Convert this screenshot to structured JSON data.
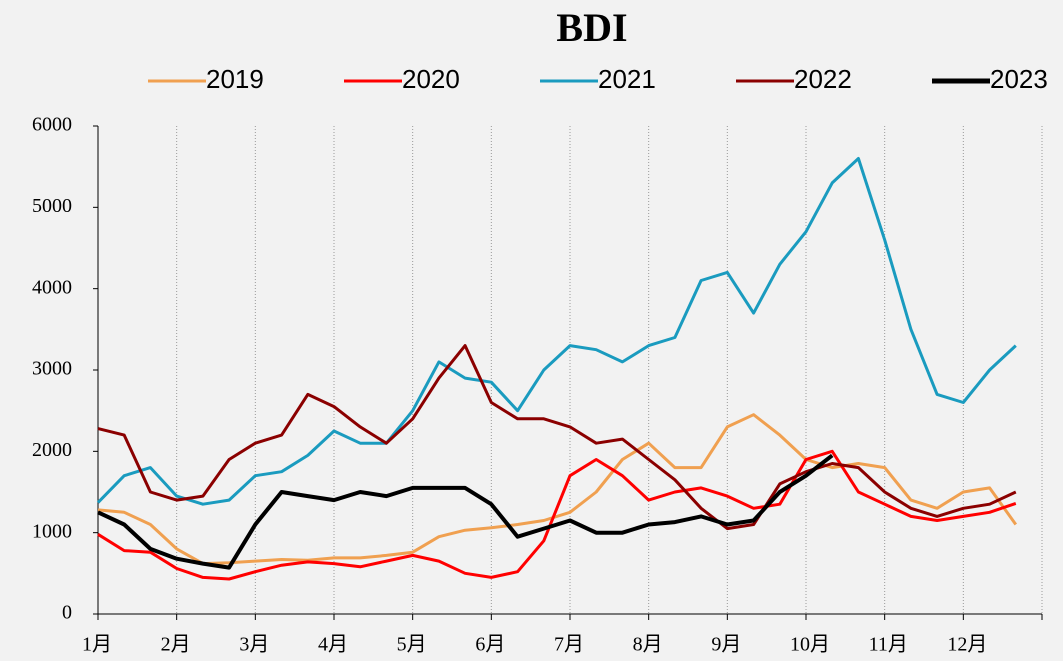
{
  "chart_data": {
    "type": "line",
    "title": "BDI",
    "categories": [
      "1月",
      null,
      null,
      "2月",
      null,
      null,
      "3月",
      null,
      null,
      "4月",
      null,
      null,
      "5月",
      null,
      null,
      "6月",
      null,
      null,
      "7月",
      null,
      null,
      "8月",
      null,
      null,
      "9月",
      null,
      null,
      "10月",
      null,
      null,
      "11月",
      null,
      null,
      "12月",
      null,
      null
    ],
    "ylim": [
      0,
      6000
    ],
    "yticks": [
      0,
      1000,
      2000,
      3000,
      4000,
      5000,
      6000
    ],
    "grid": "x-dotted",
    "series": [
      {
        "name": "2019",
        "color": "#f0a050",
        "values": [
          1280,
          1250,
          1100,
          800,
          620,
          630,
          650,
          670,
          660,
          690,
          690,
          720,
          760,
          950,
          1030,
          1060,
          1100,
          1150,
          1250,
          1500,
          1900,
          2100,
          1800,
          1800,
          2300,
          2450,
          2200,
          1900,
          1800,
          1850,
          1800,
          1400,
          1300,
          1500,
          1550,
          1100
        ]
      },
      {
        "name": "2020",
        "color": "#ff0000",
        "values": [
          980,
          780,
          760,
          560,
          450,
          430,
          520,
          600,
          640,
          620,
          580,
          650,
          720,
          650,
          500,
          450,
          520,
          900,
          1700,
          1900,
          1700,
          1400,
          1500,
          1550,
          1450,
          1300,
          1350,
          1900,
          2000,
          1500,
          1350,
          1200,
          1150,
          1200,
          1250,
          1360
        ]
      },
      {
        "name": "2021",
        "color": "#1a9bbf",
        "values": [
          1370,
          1700,
          1800,
          1450,
          1350,
          1400,
          1700,
          1750,
          1950,
          2250,
          2100,
          2100,
          2500,
          3100,
          2900,
          2850,
          2500,
          3000,
          3300,
          3250,
          3100,
          3300,
          3400,
          4100,
          4200,
          3700,
          4300,
          4700,
          5300,
          5600,
          4600,
          3500,
          2700,
          2600,
          3000,
          3300
        ]
      },
      {
        "name": "2022",
        "color": "#8b0000",
        "values": [
          2280,
          2200,
          1500,
          1400,
          1450,
          1900,
          2100,
          2200,
          2700,
          2550,
          2300,
          2100,
          2400,
          2900,
          3300,
          2600,
          2400,
          2400,
          2300,
          2100,
          2150,
          1900,
          1650,
          1300,
          1050,
          1100,
          1600,
          1750,
          1850,
          1800,
          1500,
          1300,
          1200,
          1300,
          1350,
          1500
        ]
      },
      {
        "name": "2023",
        "color": "#000000",
        "values": [
          1250,
          1100,
          800,
          680,
          620,
          570,
          1100,
          1500,
          1450,
          1400,
          1500,
          1450,
          1550,
          1550,
          1550,
          1350,
          950,
          1050,
          1150,
          1000,
          1000,
          1100,
          1130,
          1200,
          1100,
          1150,
          1500,
          1700,
          1950,
          null,
          null,
          null,
          null,
          null,
          null,
          null
        ]
      }
    ]
  }
}
